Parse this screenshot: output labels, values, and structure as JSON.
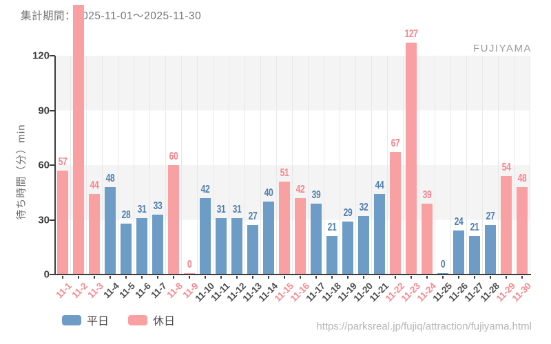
{
  "chart_data": {
    "type": "bar",
    "title": "集計期間：2025-11-01～2025-11-30",
    "watermark": "FUJIYAMA",
    "xlabel": "",
    "ylabel": "待ち時間（分）min",
    "ylim": [
      0,
      120
    ],
    "yticks": [
      0,
      30,
      60,
      90,
      120
    ],
    "grid": "alternating-horizontal-bands",
    "legend_position": "bottom-left",
    "categories": [
      "11-1",
      "11-2",
      "11-3",
      "11-4",
      "11-5",
      "11-6",
      "11-7",
      "11-8",
      "11-9",
      "11-10",
      "11-11",
      "11-12",
      "11-13",
      "11-14",
      "11-15",
      "11-16",
      "11-17",
      "11-18",
      "11-19",
      "11-20",
      "11-21",
      "11-22",
      "11-23",
      "11-24",
      "11-25",
      "11-26",
      "11-27",
      "11-28",
      "11-29",
      "11-30"
    ],
    "values": [
      57,
      148,
      44,
      48,
      28,
      31,
      33,
      60,
      0,
      42,
      31,
      31,
      27,
      40,
      51,
      42,
      39,
      21,
      29,
      32,
      44,
      67,
      127,
      39,
      0,
      24,
      21,
      27,
      54,
      48
    ],
    "day_type": [
      "holiday",
      "holiday",
      "holiday",
      "weekday",
      "weekday",
      "weekday",
      "weekday",
      "holiday",
      "holiday",
      "weekday",
      "weekday",
      "weekday",
      "weekday",
      "weekday",
      "holiday",
      "holiday",
      "weekday",
      "weekday",
      "weekday",
      "weekday",
      "weekday",
      "holiday",
      "holiday",
      "holiday",
      "weekday",
      "weekday",
      "weekday",
      "weekday",
      "holiday",
      "holiday"
    ],
    "legend": [
      {
        "key": "weekday",
        "label": "平日"
      },
      {
        "key": "holiday",
        "label": "休日"
      }
    ],
    "colors": {
      "weekday": "#6d9cc6",
      "holiday": "#f9a0a2",
      "weekday_text": "#4d7fae",
      "holiday_text": "#f8838a",
      "weekday_xlabel": "#4c4c4c",
      "holiday_xlabel": "#f8898e"
    }
  },
  "footer": {
    "url": "https://parksreal.jp/fujiq/attraction/fujiyama.html"
  }
}
